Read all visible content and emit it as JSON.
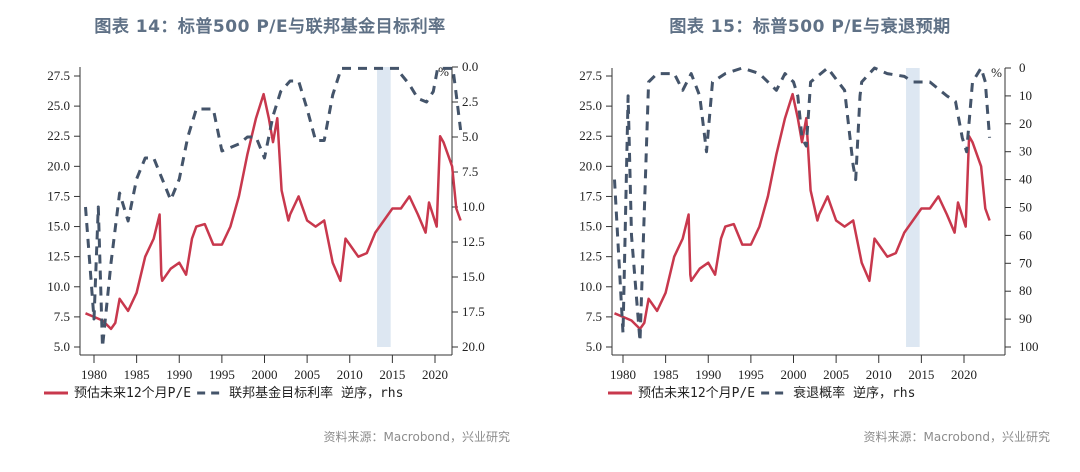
{
  "chart_data": [
    {
      "type": "line",
      "title": "图表 14：标普500 P/E与联邦基金目标利率",
      "source": "资料来源：Macrobond，兴业研究",
      "unit_label": "%",
      "x_ticks": [
        "1980",
        "1985",
        "1990",
        "1995",
        "2000",
        "2005",
        "2010",
        "2015",
        "2020"
      ],
      "left_axis": {
        "ticks": [
          "5.0",
          "7.5",
          "10.0",
          "12.5",
          "15.0",
          "17.5",
          "20.0",
          "22.5",
          "25.0",
          "27.5"
        ],
        "range": [
          5,
          28.5
        ]
      },
      "right_axis": {
        "ticks": [
          "0.0",
          "2.5",
          "5.0",
          "7.5",
          "10.0",
          "12.5",
          "15.0",
          "17.5",
          "20.0"
        ],
        "range": [
          0,
          20
        ],
        "reversed": true
      },
      "shaded_period": [
        2013.2,
        2014.8
      ],
      "legend": [
        "预估未来12个月P/E",
        "联邦基金目标利率 逆序，rhs"
      ],
      "series": [
        {
          "name": "预估未来12个月P/E",
          "axis": "left",
          "color": "#c8384d",
          "style": "solid",
          "x": [
            1979,
            1980,
            1981,
            1982,
            1982.5,
            1983,
            1984,
            1985,
            1986,
            1987,
            1987.7,
            1987.9,
            1988,
            1989,
            1990,
            1990.8,
            1991.5,
            1992,
            1993,
            1994,
            1995,
            1996,
            1997,
            1998,
            1999,
            1999.9,
            2000.5,
            2001,
            2001.5,
            2002,
            2002.8,
            2003,
            2004,
            2005,
            2006,
            2007,
            2008,
            2008.9,
            2009.5,
            2010,
            2011,
            2012,
            2013,
            2014,
            2015,
            2016,
            2017,
            2018,
            2018.9,
            2019.3,
            2020.2,
            2020.6,
            2021,
            2022,
            2022.5,
            2023
          ],
          "y": [
            7.8,
            7.5,
            7.2,
            6.5,
            7,
            9,
            8,
            9.5,
            12.5,
            14,
            16,
            11,
            10.5,
            11.5,
            12,
            11,
            14,
            15,
            15.2,
            13.5,
            13.5,
            15,
            17.5,
            21,
            24,
            26,
            24,
            22,
            24,
            18,
            15.5,
            16,
            17.5,
            15.5,
            15,
            15.5,
            12,
            10.5,
            14,
            13.5,
            12.5,
            12.8,
            14.5,
            15.5,
            16.5,
            16.5,
            17.5,
            16,
            14.5,
            17,
            15,
            22.5,
            22,
            20,
            16.5,
            15.5
          ]
        },
        {
          "name": "联邦基金目标利率 逆序，rhs",
          "axis": "right",
          "color": "#44546a",
          "style": "dashed",
          "x": [
            1979,
            1980,
            1980.5,
            1981,
            1982,
            1983,
            1984,
            1985,
            1986,
            1987,
            1988,
            1989,
            1990,
            1991,
            1992,
            1994,
            1995,
            1997,
            1998,
            1999,
            2000,
            2001,
            2001.9,
            2003,
            2004,
            2005,
            2006,
            2007,
            2008,
            2009,
            2015.9,
            2016,
            2017,
            2018,
            2019,
            2019.8,
            2020.3,
            2022.1,
            2022.5,
            2023
          ],
          "y": [
            10,
            18,
            10,
            20,
            14,
            9,
            11,
            8,
            6.5,
            6.5,
            8,
            9.5,
            8,
            5,
            3,
            3,
            6,
            5.5,
            5,
            5,
            6.5,
            3.5,
            1.75,
            1,
            1,
            3,
            5.25,
            5.25,
            2,
            0.1,
            0.1,
            0.5,
            1.25,
            2.25,
            2.5,
            1.75,
            0.1,
            0.1,
            2,
            4.5
          ]
        }
      ]
    },
    {
      "type": "line",
      "title": "图表 15：标普500 P/E与衰退预期",
      "source": "资料来源：Macrobond，兴业研究",
      "unit_label": "%",
      "x_ticks": [
        "1980",
        "1985",
        "1990",
        "1995",
        "2000",
        "2005",
        "2010",
        "2015",
        "2020"
      ],
      "left_axis": {
        "ticks": [
          "5.0",
          "7.5",
          "10.0",
          "12.5",
          "15.0",
          "17.5",
          "20.0",
          "22.5",
          "25.0",
          "27.5"
        ],
        "range": [
          5,
          28.5
        ]
      },
      "right_axis": {
        "ticks": [
          "0",
          "10",
          "20",
          "30",
          "40",
          "50",
          "60",
          "70",
          "80",
          "90",
          "100"
        ],
        "range": [
          0,
          100
        ],
        "reversed": true
      },
      "shaded_period": [
        2013.2,
        2014.8
      ],
      "legend": [
        "预估未来12个月P/E",
        "衰退概率 逆序，rhs"
      ],
      "series": [
        {
          "name": "预估未来12个月P/E",
          "axis": "left",
          "color": "#c8384d",
          "style": "solid",
          "x": [
            1979,
            1980,
            1981,
            1982,
            1982.5,
            1983,
            1984,
            1985,
            1986,
            1987,
            1987.7,
            1987.9,
            1988,
            1989,
            1990,
            1990.8,
            1991.5,
            1992,
            1993,
            1994,
            1995,
            1996,
            1997,
            1998,
            1999,
            1999.9,
            2000.5,
            2001,
            2001.5,
            2002,
            2002.8,
            2003,
            2004,
            2005,
            2006,
            2007,
            2008,
            2008.9,
            2009.5,
            2010,
            2011,
            2012,
            2013,
            2014,
            2015,
            2016,
            2017,
            2018,
            2018.9,
            2019.3,
            2020.2,
            2020.6,
            2021,
            2022,
            2022.5,
            2023
          ],
          "y": [
            7.8,
            7.5,
            7.2,
            6.5,
            7,
            9,
            8,
            9.5,
            12.5,
            14,
            16,
            11,
            10.5,
            11.5,
            12,
            11,
            14,
            15,
            15.2,
            13.5,
            13.5,
            15,
            17.5,
            21,
            24,
            26,
            24,
            22,
            24,
            18,
            15.5,
            16,
            17.5,
            15.5,
            15,
            15.5,
            12,
            10.5,
            14,
            13.5,
            12.5,
            12.8,
            14.5,
            15.5,
            16.5,
            16.5,
            17.5,
            16,
            14.5,
            17,
            15,
            22.5,
            22,
            20,
            16.5,
            15.5
          ]
        },
        {
          "name": "衰退概率 逆序，rhs",
          "axis": "right",
          "color": "#44546a",
          "style": "dashed",
          "x": [
            1979,
            1980,
            1980.6,
            1981,
            1982,
            1983,
            1984,
            1986,
            1987,
            1988,
            1989,
            1989.8,
            1990.5,
            1992,
            1994,
            1996,
            1998,
            1999,
            2000,
            2000.5,
            2001,
            2001.5,
            2002,
            2004,
            2006,
            2007,
            2007.3,
            2007.8,
            2008,
            2009.5,
            2011,
            2013,
            2014,
            2016,
            2018,
            2019,
            2019.8,
            2020.3,
            2021,
            2022,
            2022.5,
            2023
          ],
          "y": [
            40,
            95,
            10,
            60,
            98,
            5,
            2,
            2,
            8,
            2,
            10,
            30,
            5,
            2,
            0,
            2,
            8,
            2,
            5,
            10,
            25,
            28,
            5,
            0,
            8,
            35,
            40,
            10,
            5,
            0,
            2,
            3,
            5,
            5,
            10,
            12,
            25,
            30,
            5,
            0,
            5,
            25
          ]
        }
      ]
    }
  ]
}
